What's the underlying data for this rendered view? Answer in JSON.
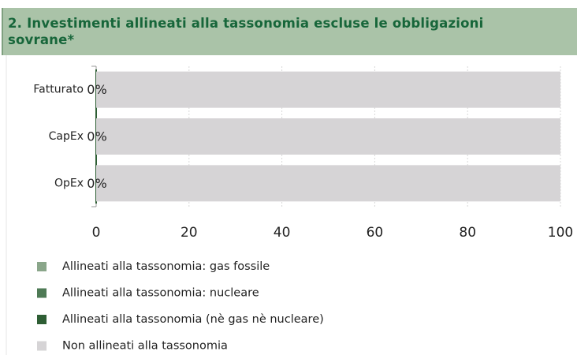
{
  "chart_data": {
    "type": "stacked-hbar",
    "title": "2. Investimenti allineati alla tassonomia escluse le obbligazioni sovrane*",
    "categories": [
      "Fatturato",
      "CapEx",
      "OpEx"
    ],
    "series": [
      {
        "name": "Allineati alla tassonomia: gas fossile",
        "color": "#8aa68a",
        "values": [
          0,
          0,
          0
        ]
      },
      {
        "name": "Allineati alla tassonomia: nucleare",
        "color": "#4e7a55",
        "values": [
          0,
          0,
          0
        ]
      },
      {
        "name": "Allineati alla tassonomia (nè gas nè nucleare)",
        "color": "#2e5e34",
        "values": [
          0,
          0,
          0
        ],
        "value_labels": [
          "0%",
          "0%",
          "0%"
        ]
      },
      {
        "name": "Non allineati alla tassonomia",
        "color": "#d6d4d6",
        "values": [
          100,
          100,
          100
        ]
      }
    ],
    "xlim": [
      0,
      100
    ],
    "xticks": [
      0,
      20,
      40,
      60,
      80,
      100
    ],
    "grid": true
  }
}
